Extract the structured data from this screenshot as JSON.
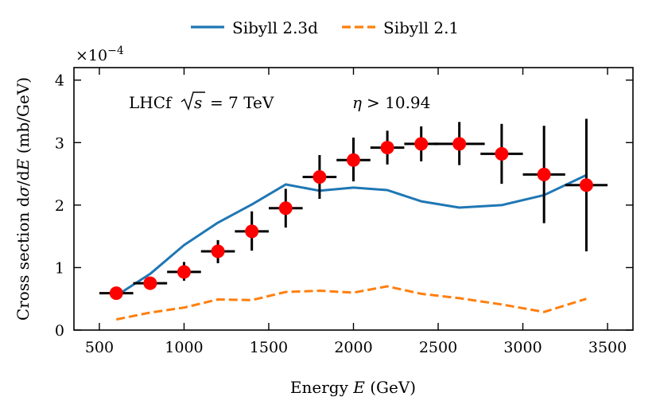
{
  "chart_data": {
    "type": "line",
    "xlabel": "Energy E (GeV)",
    "xlabel_parts": {
      "pre": "Energy ",
      "var": "E",
      "post": " (GeV)"
    },
    "ylabel": "Cross section dσ/dE (mb/GeV)",
    "ylabel_parts": {
      "pre": "Cross section d",
      "sigma": "σ",
      "mid": "/d",
      "var": "E",
      "post": " (mb/GeV)"
    },
    "y_multiplier": "×10−4",
    "y_multiplier_parts": {
      "base": "×10",
      "exp": "−4"
    },
    "xlim": [
      350,
      3650
    ],
    "ylim": [
      0,
      4.2
    ],
    "x_ticks": [
      500,
      1000,
      1500,
      2000,
      2500,
      3000,
      3500
    ],
    "x_tick_labels": [
      "500",
      "1000",
      "1500",
      "2000",
      "2500",
      "3000",
      "3500"
    ],
    "y_ticks": [
      0,
      1,
      2,
      3,
      4
    ],
    "y_tick_labels": [
      "0",
      "1",
      "2",
      "3",
      "4"
    ],
    "annotations": {
      "experiment": "LHCf",
      "sqrt_var": "s",
      "equals": "= 7 TeV",
      "eta_symbol": "η",
      "eta_cut": "> 10.94"
    },
    "legend_position": "top-center, above plot",
    "series": [
      {
        "name": "Sibyll 2.3d",
        "style": "solid",
        "color": "#1f77b4",
        "x": [
          600,
          800,
          1000,
          1200,
          1400,
          1600,
          1800,
          2000,
          2200,
          2400,
          2625,
          2875,
          3125,
          3375
        ],
        "y": [
          0.55,
          0.9,
          1.36,
          1.72,
          2.01,
          2.33,
          2.23,
          2.28,
          2.24,
          2.06,
          1.96,
          2.0,
          2.16,
          2.48
        ]
      },
      {
        "name": "Sibyll 2.1",
        "style": "dashed",
        "color": "#ff7f0e",
        "x": [
          600,
          800,
          1000,
          1200,
          1400,
          1600,
          1800,
          2000,
          2200,
          2400,
          2625,
          2875,
          3125,
          3375
        ],
        "y": [
          0.17,
          0.28,
          0.36,
          0.49,
          0.48,
          0.61,
          0.63,
          0.6,
          0.7,
          0.58,
          0.51,
          0.41,
          0.29,
          0.5
        ]
      }
    ],
    "data_points": {
      "name": "LHCf data",
      "color": "#ff0000",
      "points": [
        {
          "x": 600,
          "xerr": 100,
          "y": 0.59,
          "ylo": 0.52,
          "yhi": 0.67
        },
        {
          "x": 800,
          "xerr": 100,
          "y": 0.75,
          "ylo": 0.68,
          "yhi": 0.83
        },
        {
          "x": 1000,
          "xerr": 100,
          "y": 0.93,
          "ylo": 0.79,
          "yhi": 1.09
        },
        {
          "x": 1200,
          "xerr": 100,
          "y": 1.26,
          "ylo": 1.07,
          "yhi": 1.44
        },
        {
          "x": 1400,
          "xerr": 100,
          "y": 1.58,
          "ylo": 1.27,
          "yhi": 1.9
        },
        {
          "x": 1600,
          "xerr": 100,
          "y": 1.95,
          "ylo": 1.64,
          "yhi": 2.26
        },
        {
          "x": 1800,
          "xerr": 100,
          "y": 2.45,
          "ylo": 2.1,
          "yhi": 2.8
        },
        {
          "x": 2000,
          "xerr": 100,
          "y": 2.72,
          "ylo": 2.38,
          "yhi": 3.08
        },
        {
          "x": 2200,
          "xerr": 100,
          "y": 2.92,
          "ylo": 2.65,
          "yhi": 3.19
        },
        {
          "x": 2400,
          "xerr": 100,
          "y": 2.98,
          "ylo": 2.7,
          "yhi": 3.26
        },
        {
          "x": 2625,
          "xerr": 150,
          "y": 2.98,
          "ylo": 2.64,
          "yhi": 3.33
        },
        {
          "x": 2875,
          "xerr": 125,
          "y": 2.82,
          "ylo": 2.34,
          "yhi": 3.3
        },
        {
          "x": 3125,
          "xerr": 125,
          "y": 2.49,
          "ylo": 1.71,
          "yhi": 3.27
        },
        {
          "x": 3375,
          "xerr": 125,
          "y": 2.32,
          "ylo": 1.26,
          "yhi": 3.38
        }
      ]
    }
  }
}
